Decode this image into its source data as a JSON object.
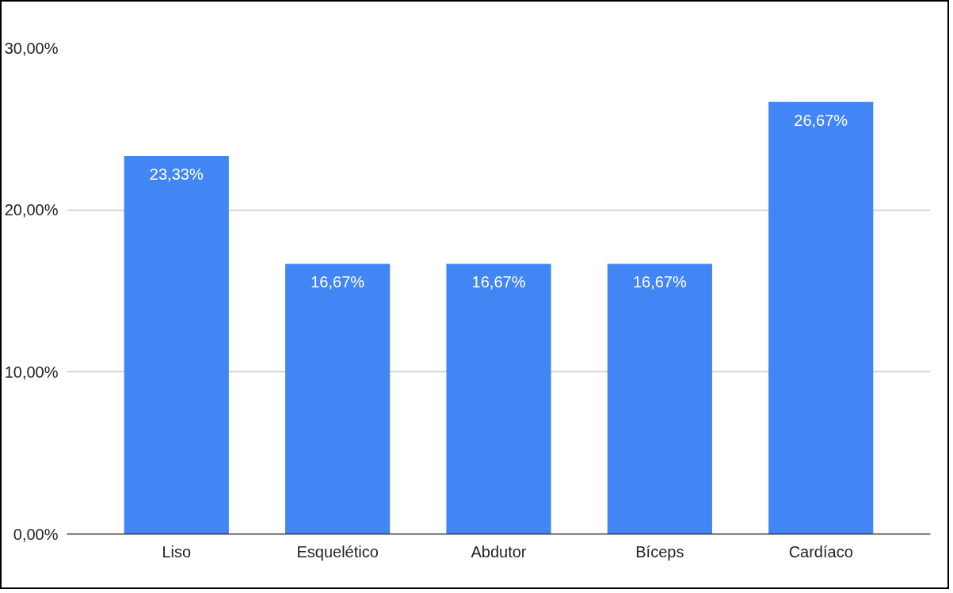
{
  "chart_data": {
    "type": "bar",
    "categories": [
      "Liso",
      "Esquelético",
      "Abdutor",
      "Bíceps",
      "Cardíaco"
    ],
    "values": [
      23.33,
      16.67,
      16.67,
      16.67,
      26.67
    ],
    "value_labels": [
      "23,33%",
      "16,67%",
      "16,67%",
      "16,67%",
      "26,67%"
    ],
    "color": "#4285f4",
    "ylim": [
      0,
      30
    ],
    "yticks": [
      {
        "value": 0,
        "label": "0,00%"
      },
      {
        "value": 10,
        "label": "10,00%"
      },
      {
        "value": 20,
        "label": "20,00%"
      },
      {
        "value": 30,
        "label": "30,00%"
      }
    ],
    "grid": "y"
  }
}
